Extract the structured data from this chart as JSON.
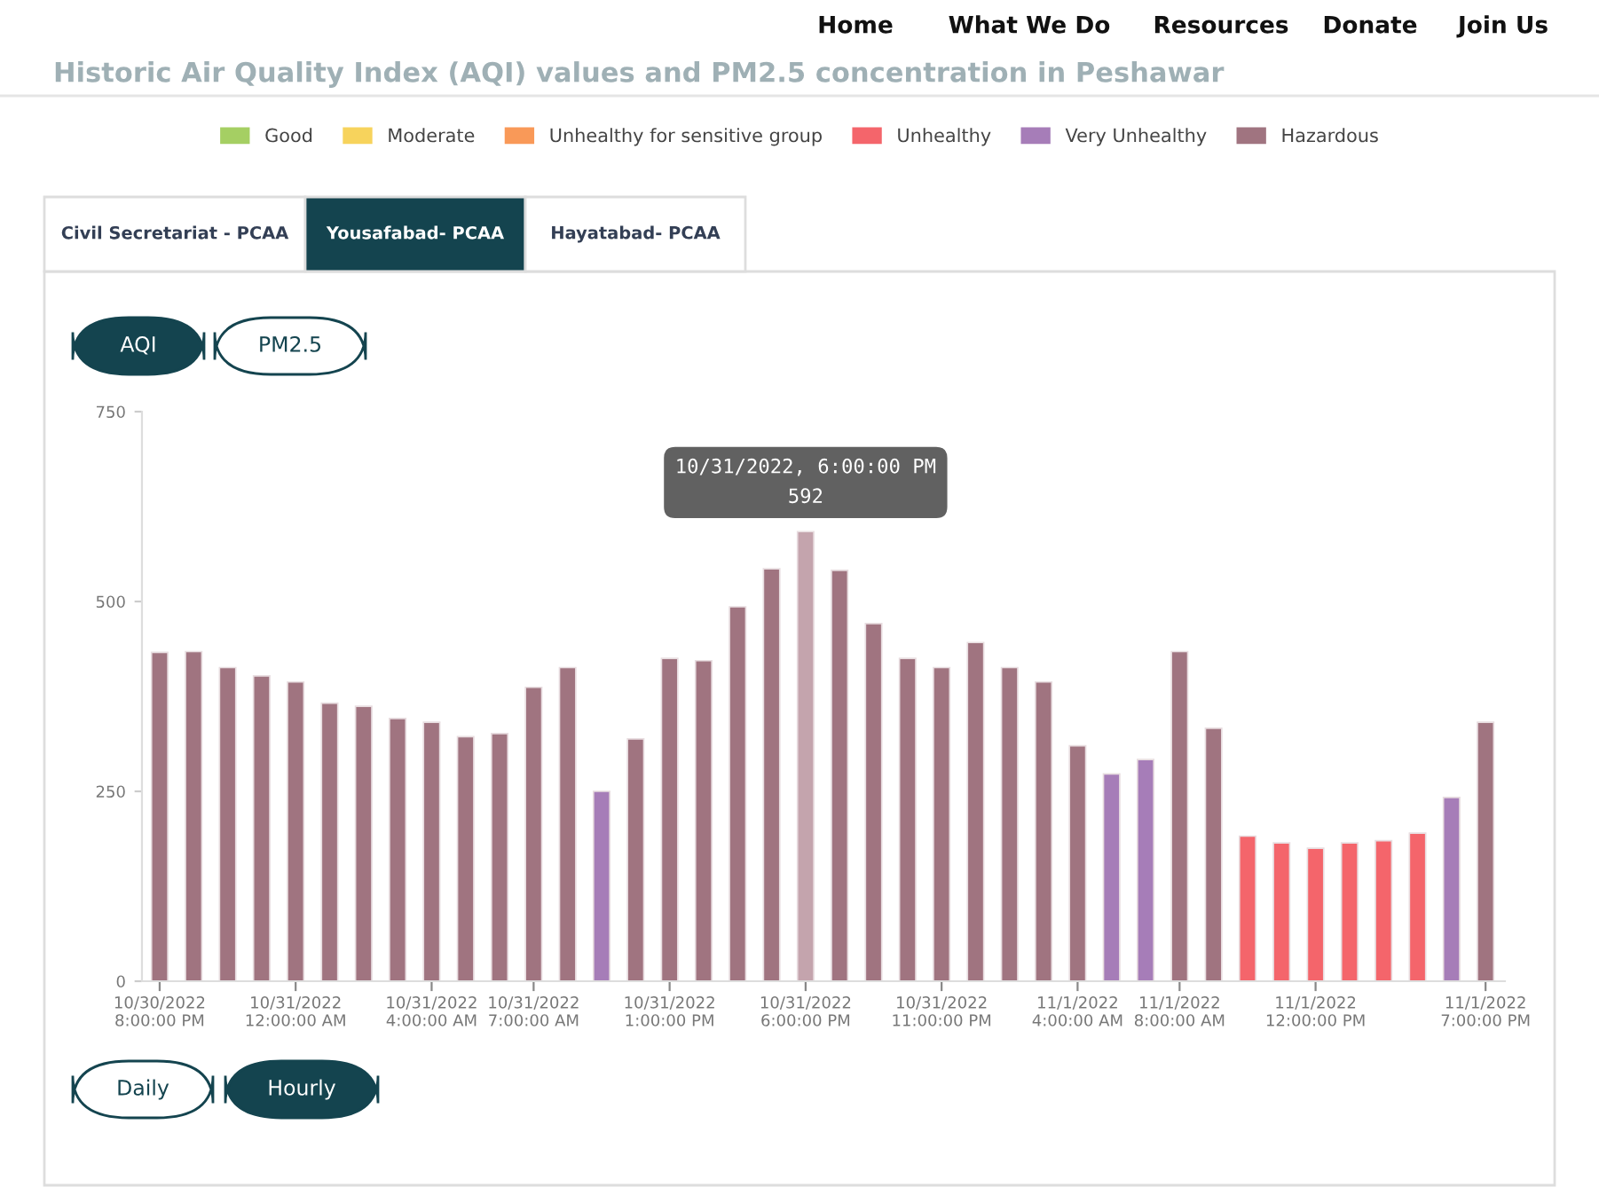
{
  "chart_data": {
    "type": "bar",
    "title": "Historic Air Quality Index (AQI) values and PM2.5 concentration in Peshawar",
    "categories": [
      "10/30/2022\n8:00:00 PM",
      null,
      null,
      null,
      "10/31/2022\n12:00:00 AM",
      null,
      null,
      null,
      "10/31/2022\n4:00:00 AM",
      null,
      null,
      "10/31/2022\n7:00:00 AM",
      null,
      null,
      null,
      "10/31/2022\n1:00:00 PM",
      null,
      null,
      null,
      "10/31/2022\n6:00:00 PM",
      null,
      null,
      null,
      "10/31/2022\n11:00:00 PM",
      null,
      null,
      null,
      "11/1/2022\n4:00:00 AM",
      null,
      null,
      "11/1/2022\n8:00:00 AM",
      null,
      null,
      null,
      "11/1/2022\n12:00:00 PM",
      null,
      null,
      null,
      null,
      "11/1/2022\n7:00:00 PM"
    ],
    "series": [
      {
        "name": "Good",
        "color": "#a5cf63",
        "values": [
          null,
          null,
          null,
          null,
          null,
          null,
          null,
          null,
          null,
          null,
          null,
          null,
          null,
          null,
          null,
          null,
          null,
          null,
          null,
          null,
          null,
          null,
          null,
          null,
          null,
          null,
          null,
          null,
          null,
          null,
          null,
          null,
          null,
          null,
          null,
          null,
          null,
          null,
          null,
          null
        ]
      },
      {
        "name": "Moderate",
        "color": "#f7d35c",
        "values": [
          null,
          null,
          null,
          null,
          null,
          null,
          null,
          null,
          null,
          null,
          null,
          null,
          null,
          null,
          null,
          null,
          null,
          null,
          null,
          null,
          null,
          null,
          null,
          null,
          null,
          null,
          null,
          null,
          null,
          null,
          null,
          null,
          null,
          null,
          null,
          null,
          null,
          null,
          null,
          null
        ]
      },
      {
        "name": "Unhealthy for sensitive group",
        "color": "#f99958",
        "values": [
          null,
          null,
          null,
          null,
          null,
          null,
          null,
          null,
          null,
          null,
          null,
          null,
          null,
          null,
          null,
          null,
          null,
          null,
          null,
          null,
          null,
          null,
          null,
          null,
          null,
          null,
          null,
          null,
          null,
          null,
          null,
          null,
          null,
          null,
          null,
          null,
          null,
          null,
          null,
          null
        ]
      },
      {
        "name": "Unhealthy",
        "color": "#f4656b",
        "values": [
          null,
          null,
          null,
          null,
          null,
          null,
          null,
          null,
          null,
          null,
          null,
          null,
          null,
          null,
          null,
          null,
          null,
          null,
          null,
          null,
          null,
          null,
          null,
          null,
          null,
          null,
          null,
          null,
          null,
          null,
          null,
          null,
          191,
          182,
          175,
          182,
          185,
          195,
          null,
          null
        ]
      },
      {
        "name": "Very Unhealthy",
        "color": "#a67db8",
        "values": [
          null,
          null,
          null,
          null,
          null,
          null,
          null,
          null,
          null,
          null,
          null,
          null,
          null,
          250,
          null,
          null,
          null,
          null,
          null,
          null,
          null,
          null,
          null,
          null,
          null,
          null,
          null,
          null,
          273,
          292,
          null,
          null,
          null,
          null,
          null,
          null,
          null,
          null,
          242,
          null
        ]
      },
      {
        "name": "Hazardous",
        "color": "#a07480",
        "colors": [
          "#a07480",
          "#a07480",
          "#a07480",
          "#a07480",
          "#a07480",
          "#a07480",
          "#a07480",
          "#a07480",
          "#a07480",
          "#a07480",
          "#a07480",
          "#a07480",
          "#a07480",
          "#a07480",
          "#a07480",
          "#a07480",
          "#a07480",
          "#a07480",
          "#a07480",
          "#c4a4ad",
          "#a07480",
          "#a07480",
          "#a07480",
          "#a07480",
          "#a07480",
          "#a07480",
          "#a07480",
          "#a07480",
          "#a07480",
          "#a07480",
          "#a07480",
          "#a07480",
          "#a07480",
          "#a07480",
          "#a07480",
          "#a07480",
          "#a07480",
          "#a07480",
          "#a07480",
          "#a07480"
        ],
        "values": [
          433,
          434,
          413,
          402,
          394,
          366,
          362,
          346,
          341,
          322,
          326,
          387,
          413,
          null,
          319,
          425,
          422,
          493,
          543,
          592,
          541,
          471,
          425,
          413,
          446,
          413,
          394,
          310,
          null,
          null,
          434,
          333,
          null,
          null,
          null,
          null,
          null,
          null,
          null,
          341
        ]
      }
    ],
    "ylim": [
      0,
      750
    ],
    "yticks": [
      0,
      250,
      500,
      750
    ],
    "grid": false,
    "legend": "top",
    "annotations": [
      "Home",
      "What We Do",
      "Resources",
      "Donate",
      "Join Us",
      "Civil Secretariat - PCAA",
      "Yousafabad- PCAA",
      "Hayatabad- PCAA",
      "AQI",
      "PM2.5",
      "Daily",
      "Hourly",
      {
        "text": "10/31/2022, 6:00:00 PM\n592",
        "x": "10/31/2022\n6:00:00 PM",
        "y": 592
      }
    ]
  }
}
